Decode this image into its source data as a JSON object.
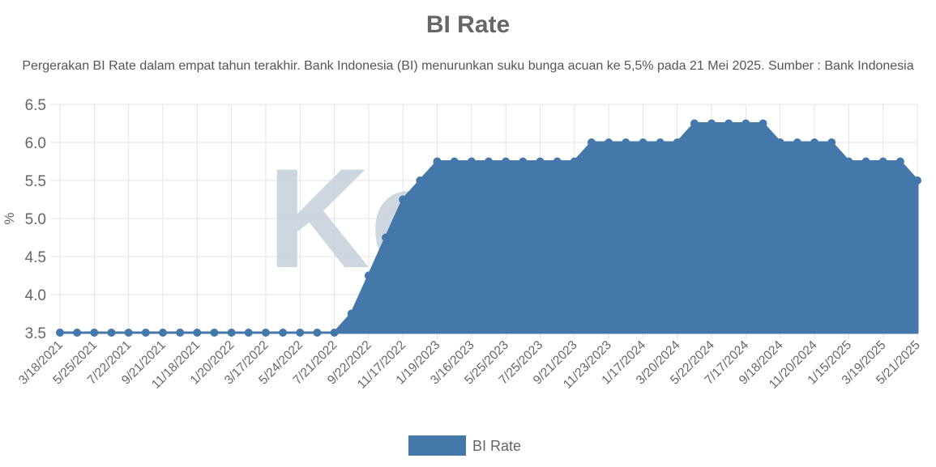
{
  "chart_data": {
    "type": "area",
    "title": "BI Rate",
    "subtitle": "Pergerakan BI Rate dalam empat tahun terakhir. Bank Indonesia (BI) menurunkan suku bunga acuan ke 5,5% pada 21 Mei 2025. Sumber : Bank Indonesia",
    "ylabel": "%",
    "xlabel": "",
    "ylim": [
      3.5,
      6.5
    ],
    "yticks": [
      "3.5",
      "4.0",
      "4.5",
      "5.0",
      "5.5",
      "6.0",
      "6.5"
    ],
    "x_tick_labels": [
      "3/18/2021",
      "5/25/2021",
      "7/22/2021",
      "9/21/2021",
      "11/18/2021",
      "1/20/2022",
      "3/17/2022",
      "5/24/2022",
      "7/21/2022",
      "9/22/2022",
      "11/17/2022",
      "1/19/2023",
      "3/16/2023",
      "5/25/2023",
      "7/25/2023",
      "9/21/2023",
      "11/23/2023",
      "1/17/2024",
      "3/20/2024",
      "5/22/2024",
      "7/17/2024",
      "9/18/2024",
      "11/20/2024",
      "1/15/2025",
      "3/19/2025",
      "5/21/2025"
    ],
    "x_tick_every": 2,
    "grid": true,
    "legend": "bottom",
    "series": [
      {
        "name": "BI Rate",
        "color": "#4477aa",
        "values": [
          3.5,
          3.5,
          3.5,
          3.5,
          3.5,
          3.5,
          3.5,
          3.5,
          3.5,
          3.5,
          3.5,
          3.5,
          3.5,
          3.5,
          3.5,
          3.5,
          3.5,
          3.75,
          4.25,
          4.75,
          5.25,
          5.5,
          5.75,
          5.75,
          5.75,
          5.75,
          5.75,
          5.75,
          5.75,
          5.75,
          5.75,
          6.0,
          6.0,
          6.0,
          6.0,
          6.0,
          6.0,
          6.25,
          6.25,
          6.25,
          6.25,
          6.25,
          6.0,
          6.0,
          6.0,
          6.0,
          5.75,
          5.75,
          5.75,
          5.75,
          5.5
        ]
      }
    ],
    "watermark": "Kc"
  }
}
